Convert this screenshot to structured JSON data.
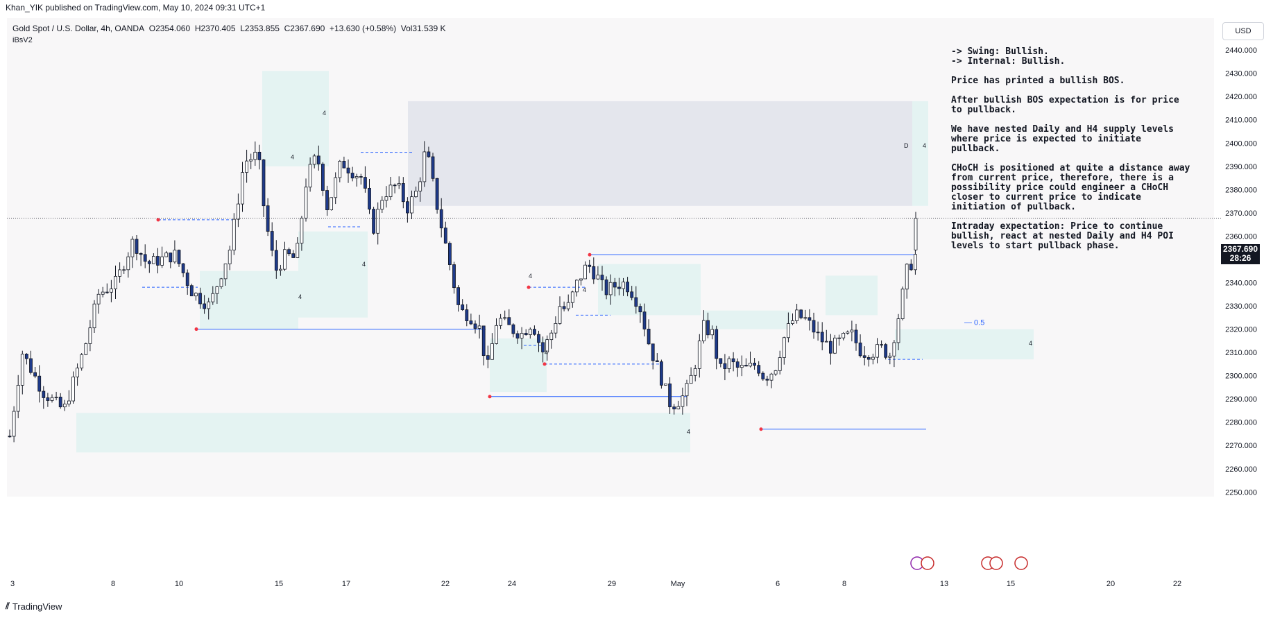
{
  "header": {
    "publisher": "Khan_YIK published on TradingView.com, May 10, 2024 09:31 UTC+1"
  },
  "legend": {
    "symbol": "Gold Spot / U.S. Dollar, 4h, OANDA",
    "open": "O2354.060",
    "high": "H2370.405",
    "low": "L2353.855",
    "close": "C2367.690",
    "change": "+13.630 (+0.58%)",
    "volume": "Vol31.539 K",
    "indicator": "iBsV2"
  },
  "currency_button": "USD",
  "price_label": {
    "price": "2367.690",
    "countdown": "28:26"
  },
  "notes": {
    "swing": "-> Swing:  Bullish.",
    "internal": "-> Internal:  Bullish.",
    "p1": "Price has printed a bullish BOS.",
    "p2": "After bullish BOS expectation is for price to pullback.",
    "p3": "We have nested Daily and H4 supply levels where price is expected to initiate pullback.",
    "p4": "CHoCH is positioned at quite a distance away from current price, therefore, there is a possibility price could engineer a CHoCH closer to current price to indicate initiation of pullback.",
    "p5": "Intraday expectation: Price to continue bullish, react at nested Daily and H4 POI levels to start pullback phase."
  },
  "fib_label": "— 0.5",
  "footer": {
    "brand": "TradingView"
  },
  "colors": {
    "bull": "#ffffff",
    "bear": "#1e3a8a",
    "wick": "#131722",
    "zone": "#e0f2f1",
    "supply_zone": "#e0e3eb",
    "line": "#2962ff",
    "swing_dot": "#f23645"
  },
  "chart_data": {
    "type": "candlestick",
    "title": "Gold Spot / U.S. Dollar, 4h, OANDA",
    "ylim": [
      2248,
      2446
    ],
    "y_ticks": [
      2250,
      2260,
      2270,
      2280,
      2290,
      2300,
      2310,
      2320,
      2330,
      2340,
      2350,
      2360,
      2370,
      2380,
      2390,
      2400,
      2410,
      2420,
      2430,
      2440
    ],
    "x_ticks": [
      "3",
      "8",
      "10",
      "15",
      "17",
      "22",
      "24",
      "29",
      "May",
      "6",
      "8",
      "13",
      "15",
      "20",
      "22"
    ],
    "last_price": 2367.69,
    "annotations": [
      {
        "label": "4",
        "price": 2412
      },
      {
        "label": "4",
        "price": 2393
      },
      {
        "label": "4",
        "price": 2347
      },
      {
        "label": "4",
        "price": 2333
      },
      {
        "label": "4",
        "price": 2342
      },
      {
        "label": "4",
        "price": 2336
      },
      {
        "label": "4",
        "price": 2309
      },
      {
        "label": "4",
        "price": 2275
      },
      {
        "label": "D",
        "price": 2398
      },
      {
        "label": "4",
        "price": 2398
      },
      {
        "label": "4",
        "price": 2313
      }
    ]
  }
}
